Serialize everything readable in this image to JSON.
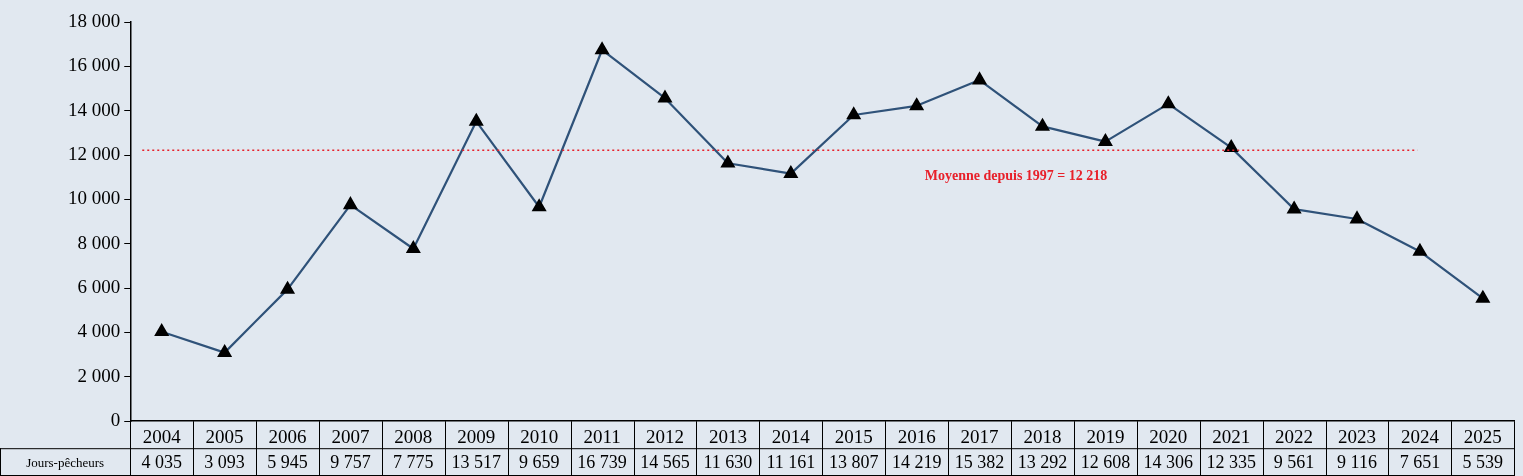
{
  "chart_data": {
    "type": "line",
    "categories": [
      "2004",
      "2005",
      "2006",
      "2007",
      "2008",
      "2009",
      "2010",
      "2011",
      "2012",
      "2013",
      "2014",
      "2015",
      "2016",
      "2017",
      "2018",
      "2019",
      "2020",
      "2021",
      "2022",
      "2023",
      "2024",
      "2025"
    ],
    "series": [
      {
        "name": "Jours-pêcheurs",
        "color": "#2f5279",
        "values": [
          4035,
          3093,
          5945,
          9757,
          7775,
          13517,
          9659,
          16739,
          14565,
          11630,
          11161,
          13807,
          14219,
          15382,
          13292,
          12608,
          14306,
          12335,
          9561,
          9116,
          7651,
          5539
        ],
        "value_labels": [
          "4 035",
          "3 093",
          "5 945",
          "9 757",
          "7 775",
          "13 517",
          "9 659",
          "16 739",
          "14 565",
          "11 630",
          "11 161",
          "13 807",
          "14 219",
          "15 382",
          "13 292",
          "12 608",
          "14 306",
          "12 335",
          "9 561",
          "9 116",
          "7 651",
          "5 539"
        ]
      }
    ],
    "ylim": [
      0,
      18000
    ],
    "yticks": [
      0,
      {
        "value": 2000,
        "label": "2 000"
      },
      {
        "value": 4000,
        "label": "4 000"
      },
      {
        "value": 6000,
        "label": "6 000"
      },
      {
        "value": 8000,
        "label": "8 000"
      },
      {
        "value": 10000,
        "label": "10 000"
      },
      {
        "value": 12000,
        "label": "12 000"
      },
      {
        "value": 14000,
        "label": "14 000"
      },
      {
        "value": 16000,
        "label": "16 000"
      },
      {
        "value": 18000,
        "label": "18 000"
      }
    ],
    "ref_lines": [
      {
        "axis": "y",
        "value": 12218,
        "label": "Moyenne depuis 1997 = 12 218",
        "color": "#e8202a",
        "line_style": "dotted"
      }
    ],
    "marker": "triangle",
    "line_style": "solid",
    "grid": false,
    "legend": "bottom left"
  }
}
